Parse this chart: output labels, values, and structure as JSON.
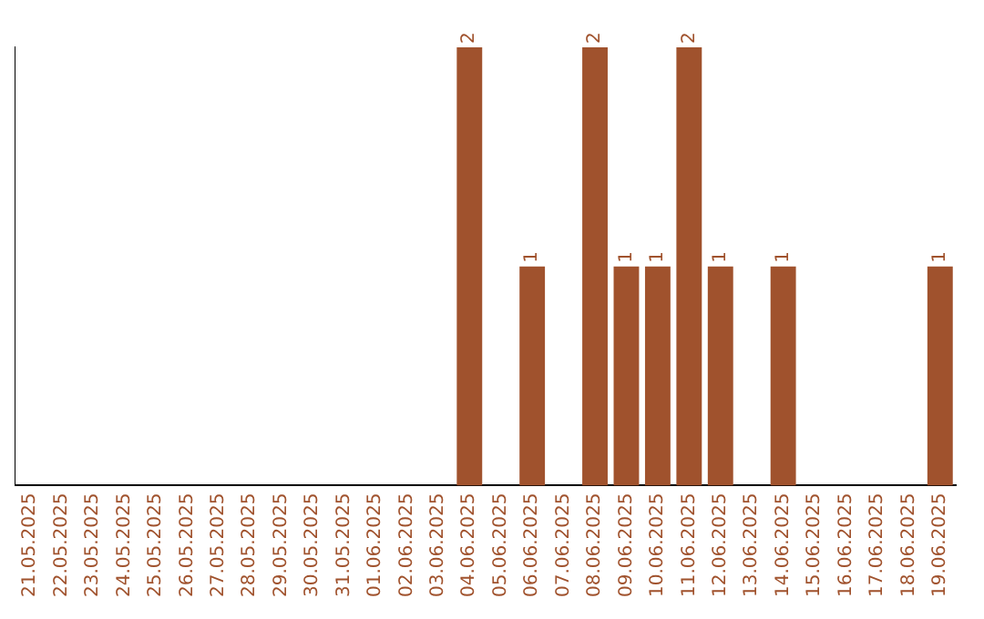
{
  "chart_data": {
    "type": "bar",
    "categories": [
      "21.05.2025",
      "22.05.2025",
      "23.05.2025",
      "24.05.2025",
      "25.05.2025",
      "26.05.2025",
      "27.05.2025",
      "28.05.2025",
      "29.05.2025",
      "30.05.2025",
      "31.05.2025",
      "01.06.2025",
      "02.06.2025",
      "03.06.2025",
      "04.06.2025",
      "05.06.2025",
      "06.06.2025",
      "07.06.2025",
      "08.06.2025",
      "09.06.2025",
      "10.06.2025",
      "11.06.2025",
      "12.06.2025",
      "13.06.2025",
      "14.06.2025",
      "15.06.2025",
      "16.06.2025",
      "17.06.2025",
      "18.06.2025",
      "19.06.2025"
    ],
    "values": [
      null,
      null,
      null,
      null,
      null,
      null,
      null,
      null,
      null,
      null,
      null,
      null,
      null,
      null,
      2,
      null,
      1,
      null,
      2,
      1,
      1,
      2,
      1,
      null,
      1,
      null,
      null,
      null,
      null,
      1
    ],
    "data_labels": true,
    "color": "#a0522d",
    "grid": false,
    "legend": false,
    "tick_labels": "x"
  }
}
